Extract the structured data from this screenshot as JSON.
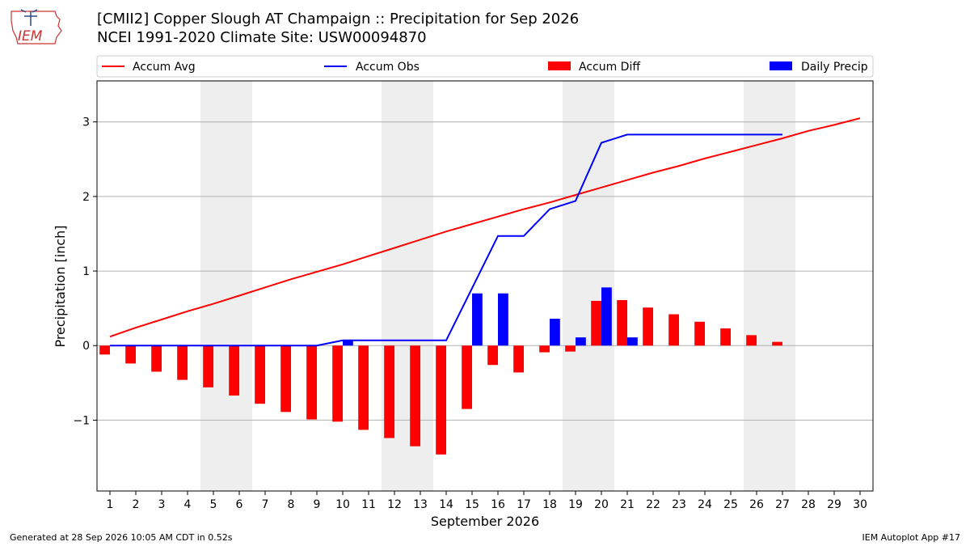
{
  "header": {
    "title_line1": "[CMII2] Copper Slough  AT Champaign :: Precipitation for Sep 2026",
    "title_line2": "NCEI 1991-2020 Climate Site: USW00094870",
    "logo_text": "IEM"
  },
  "footer": {
    "generated": "Generated at 28 Sep 2026 10:05 AM CDT in 0.52s",
    "app": "IEM Autoplot App #17"
  },
  "colors": {
    "avg": "#ff0000",
    "obs": "#0000ff",
    "diff": "#ff0000",
    "daily": "#0000ff",
    "weekend": "#eeeeee",
    "grid": "#b0b0b0"
  },
  "chart_data": {
    "type": "bar",
    "title": "[CMII2] Copper Slough  AT Champaign :: Precipitation for Sep 2026",
    "xlabel": "September 2026",
    "ylabel": "Precipitation [inch]",
    "ylim": [
      -1.95,
      3.55
    ],
    "yticks": [
      -1,
      0,
      1,
      2,
      3
    ],
    "ytick_labels": [
      "−1",
      "0",
      "1",
      "2",
      "3"
    ],
    "xlim": [
      0.5,
      30.5
    ],
    "grid": "horizontal",
    "legend_position": "top",
    "legend": [
      "Accum Avg",
      "Accum Obs",
      "Accum Diff",
      "Daily Precip"
    ],
    "days": [
      1,
      2,
      3,
      4,
      5,
      6,
      7,
      8,
      9,
      10,
      11,
      12,
      13,
      14,
      15,
      16,
      17,
      18,
      19,
      20,
      21,
      22,
      23,
      24,
      25,
      26,
      27,
      28,
      29,
      30
    ],
    "weekend_days": [
      5,
      6,
      12,
      13,
      19,
      20,
      26,
      27
    ],
    "series": [
      {
        "name": "Accum Avg",
        "type": "line",
        "values": [
          0.12,
          0.24,
          0.35,
          0.46,
          0.56,
          0.67,
          0.78,
          0.89,
          0.99,
          1.09,
          1.2,
          1.31,
          1.42,
          1.53,
          1.63,
          1.73,
          1.83,
          1.92,
          2.02,
          2.12,
          2.22,
          2.32,
          2.41,
          2.51,
          2.6,
          2.69,
          2.78,
          2.88,
          2.96,
          3.05
        ]
      },
      {
        "name": "Accum Obs",
        "type": "line",
        "values": [
          0.0,
          0.0,
          0.0,
          0.0,
          0.0,
          0.0,
          0.0,
          0.0,
          0.0,
          0.07,
          0.07,
          0.07,
          0.07,
          0.07,
          0.77,
          1.47,
          1.47,
          1.83,
          1.94,
          2.72,
          2.83,
          2.83,
          2.83,
          2.83,
          2.83,
          2.83,
          2.83
        ]
      },
      {
        "name": "Accum Diff",
        "type": "bar",
        "values": [
          -0.12,
          -0.24,
          -0.35,
          -0.46,
          -0.56,
          -0.67,
          -0.78,
          -0.89,
          -0.99,
          -1.02,
          -1.13,
          -1.24,
          -1.35,
          -1.46,
          -0.85,
          -0.26,
          -0.36,
          -0.09,
          -0.08,
          0.6,
          0.61,
          0.51,
          0.42,
          0.32,
          0.23,
          0.14,
          0.05
        ]
      },
      {
        "name": "Daily Precip",
        "type": "bar",
        "values": [
          0,
          0,
          0,
          0,
          0,
          0,
          0,
          0,
          0,
          0.07,
          0,
          0,
          0,
          0,
          0.7,
          0.7,
          0,
          0.36,
          0.11,
          0.78,
          0.11,
          0,
          0,
          0,
          0,
          0,
          0
        ]
      }
    ]
  }
}
